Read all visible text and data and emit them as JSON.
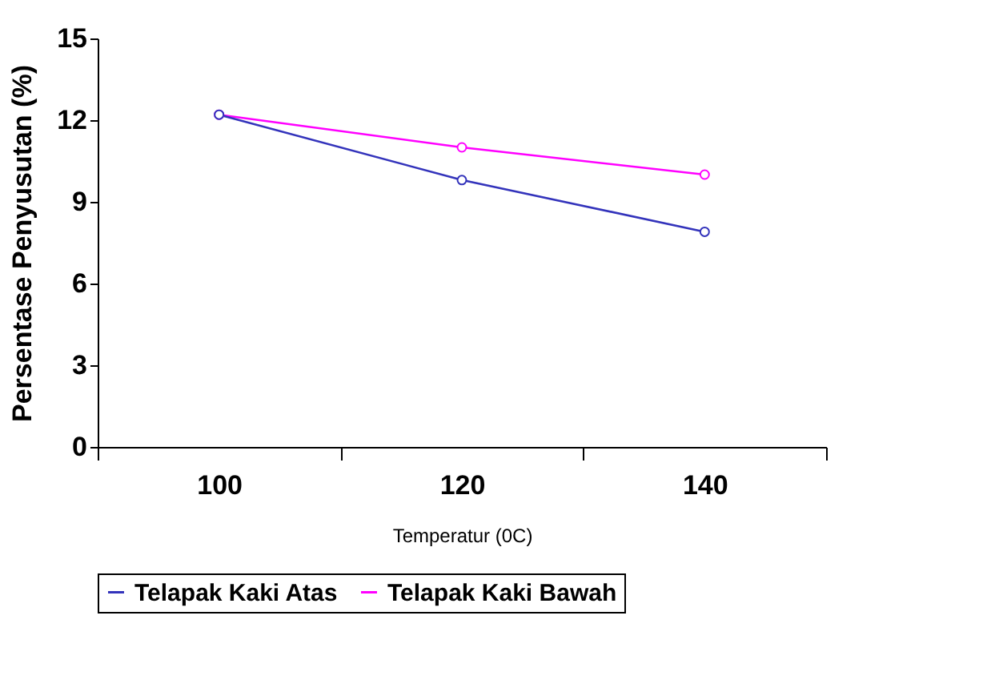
{
  "chart_data": {
    "type": "line",
    "xlabel": "Temperatur (0C)",
    "ylabel": "Persentase Penyusutan (%)",
    "categories": [
      "100",
      "120",
      "140"
    ],
    "series": [
      {
        "name": "Telapak Kaki Atas",
        "color": "#3333bb",
        "values": [
          12.2,
          9.8,
          7.9
        ]
      },
      {
        "name": "Telapak Kaki Bawah",
        "color": "#ff00ff",
        "values": [
          12.2,
          11.0,
          10.0
        ]
      }
    ],
    "ylim": [
      0,
      15
    ],
    "yticks": [
      0,
      3,
      6,
      9,
      12,
      15
    ],
    "grid": false,
    "legend": "bottom",
    "marker": "circle",
    "line_style": "solid"
  }
}
